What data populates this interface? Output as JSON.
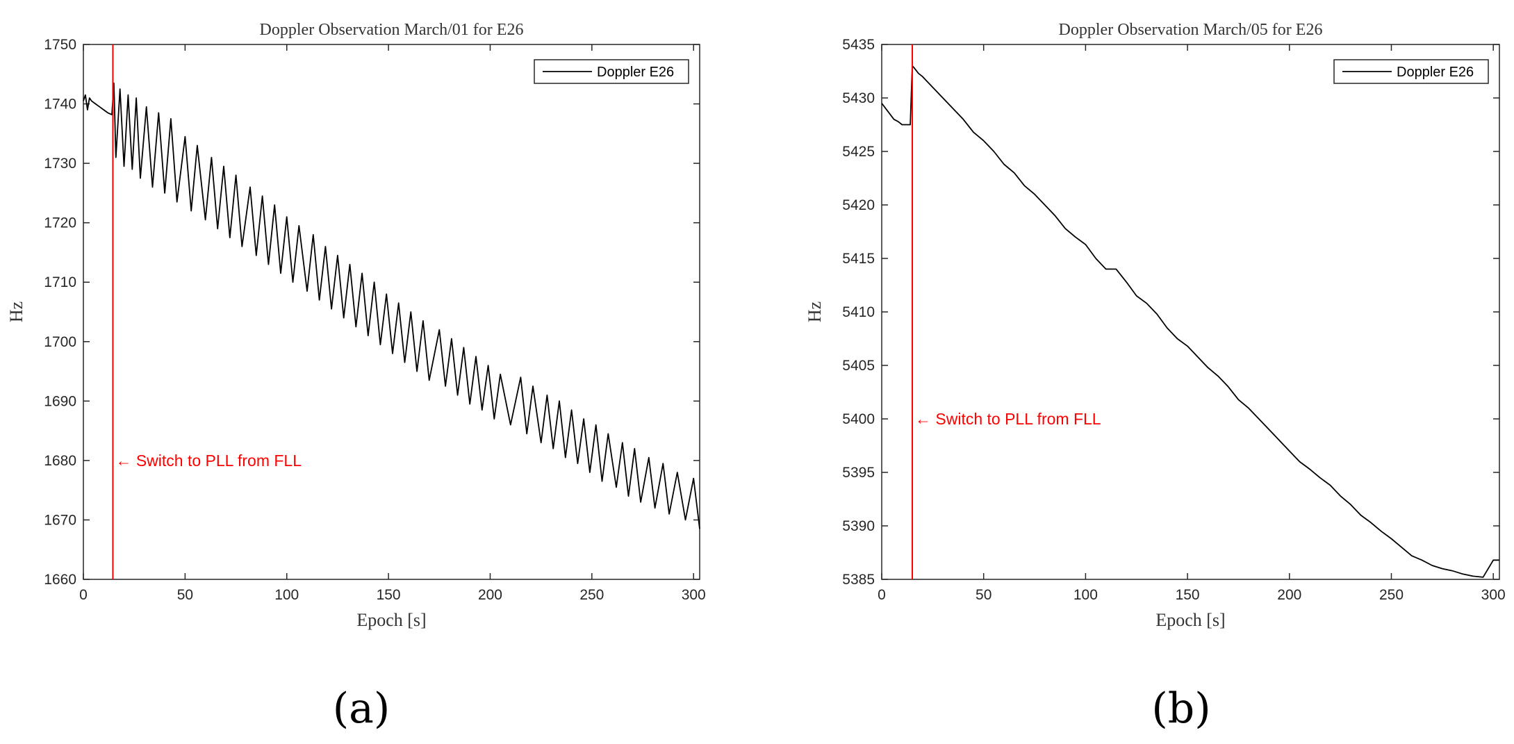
{
  "figure_labels": {
    "a": "(a)",
    "b": "(b)"
  },
  "chart_data": [
    {
      "type": "line",
      "title": "Doppler Observation March/01 for E26",
      "xlabel": "Epoch [s]",
      "ylabel": "Hz",
      "xlim": [
        0,
        303
      ],
      "ylim": [
        1660,
        1750
      ],
      "xticks": [
        0,
        50,
        100,
        150,
        200,
        250,
        300
      ],
      "yticks": [
        1660,
        1670,
        1680,
        1690,
        1700,
        1710,
        1720,
        1730,
        1740,
        1750
      ],
      "grid": false,
      "legend_position": "top-right",
      "series": [
        {
          "name": "Doppler E26",
          "color": "#000000",
          "x": [
            0,
            1,
            2,
            3,
            4,
            6,
            8,
            10,
            12,
            14,
            15,
            16,
            18,
            20,
            22,
            24,
            26,
            28,
            31,
            34,
            37,
            40,
            43,
            46,
            50,
            53,
            56,
            60,
            63,
            66,
            69,
            72,
            75,
            78,
            82,
            85,
            88,
            91,
            94,
            97,
            100,
            103,
            106,
            110,
            113,
            116,
            119,
            122,
            125,
            128,
            131,
            134,
            137,
            140,
            143,
            146,
            149,
            152,
            155,
            158,
            161,
            164,
            167,
            170,
            175,
            178,
            181,
            184,
            187,
            190,
            193,
            196,
            199,
            202,
            205,
            210,
            215,
            218,
            221,
            225,
            228,
            231,
            234,
            237,
            240,
            243,
            246,
            249,
            252,
            255,
            258,
            262,
            265,
            268,
            271,
            274,
            278,
            281,
            285,
            288,
            292,
            296,
            300,
            303
          ],
          "y": [
            1740.5,
            1741.5,
            1739.0,
            1741.0,
            1740.5,
            1740.0,
            1739.5,
            1739.0,
            1738.5,
            1738.2,
            1743.5,
            1731.0,
            1742.5,
            1729.5,
            1741.5,
            1729.0,
            1741.0,
            1727.5,
            1739.5,
            1726.0,
            1738.5,
            1725.0,
            1737.5,
            1723.5,
            1734.5,
            1722.0,
            1733.0,
            1720.5,
            1731.0,
            1719.0,
            1729.5,
            1717.5,
            1728.0,
            1716.0,
            1726.0,
            1714.5,
            1724.5,
            1713.0,
            1723.0,
            1711.5,
            1721.0,
            1710.0,
            1719.5,
            1708.5,
            1718.0,
            1707.0,
            1716.0,
            1705.5,
            1714.5,
            1704.0,
            1713.0,
            1702.5,
            1711.5,
            1701.0,
            1710.0,
            1699.5,
            1708.0,
            1698.0,
            1706.5,
            1696.5,
            1705.0,
            1695.0,
            1703.5,
            1693.5,
            1702.0,
            1692.5,
            1700.5,
            1691.0,
            1699.0,
            1689.5,
            1697.5,
            1688.5,
            1696.0,
            1687.0,
            1694.5,
            1686.0,
            1694.0,
            1684.5,
            1692.5,
            1683.0,
            1691.0,
            1682.0,
            1690.0,
            1680.5,
            1688.5,
            1679.5,
            1687.0,
            1678.0,
            1686.0,
            1676.5,
            1684.5,
            1675.5,
            1683.0,
            1674.0,
            1682.0,
            1673.0,
            1680.5,
            1672.0,
            1679.5,
            1671.0,
            1678.0,
            1670.0,
            1677.0,
            1668.5
          ]
        }
      ],
      "annotation": {
        "text": "← Switch to PLL from FLL",
        "x": 14.5,
        "y": 1680,
        "color": "#ff0000"
      },
      "vline": {
        "x": 14.5,
        "color": "#ff0000"
      }
    },
    {
      "type": "line",
      "title": "Doppler Observation March/05 for E26",
      "xlabel": "Epoch [s]",
      "ylabel": "Hz",
      "xlim": [
        0,
        303
      ],
      "ylim": [
        5385,
        5435
      ],
      "xticks": [
        0,
        50,
        100,
        150,
        200,
        250,
        300
      ],
      "yticks": [
        5385,
        5390,
        5395,
        5400,
        5405,
        5410,
        5415,
        5420,
        5425,
        5430,
        5435
      ],
      "grid": false,
      "legend_position": "top-right",
      "series": [
        {
          "name": "Doppler E26",
          "color": "#000000",
          "x": [
            0,
            2,
            4,
            6,
            8,
            10,
            12,
            14,
            15,
            16,
            18,
            20,
            25,
            30,
            35,
            40,
            45,
            50,
            55,
            60,
            65,
            70,
            75,
            80,
            85,
            90,
            95,
            100,
            105,
            110,
            115,
            120,
            125,
            130,
            135,
            140,
            145,
            150,
            155,
            160,
            165,
            170,
            175,
            180,
            185,
            190,
            195,
            200,
            205,
            210,
            215,
            220,
            225,
            230,
            235,
            240,
            245,
            250,
            255,
            260,
            265,
            270,
            275,
            280,
            285,
            290,
            295,
            300,
            303
          ],
          "y": [
            5429.5,
            5429.0,
            5428.5,
            5428.0,
            5427.8,
            5427.5,
            5427.5,
            5427.5,
            5433.0,
            5432.8,
            5432.3,
            5432.0,
            5431.0,
            5430.0,
            5429.0,
            5428.0,
            5426.8,
            5426.0,
            5425.0,
            5423.8,
            5423.0,
            5421.8,
            5421.0,
            5420.0,
            5419.0,
            5417.8,
            5417.0,
            5416.3,
            5415.0,
            5414.0,
            5414.0,
            5412.8,
            5411.5,
            5410.8,
            5409.8,
            5408.5,
            5407.5,
            5406.8,
            5405.8,
            5404.8,
            5404.0,
            5403.0,
            5401.8,
            5401.0,
            5400.0,
            5399.0,
            5398.0,
            5397.0,
            5396.0,
            5395.3,
            5394.5,
            5393.8,
            5392.8,
            5392.0,
            5391.0,
            5390.3,
            5389.5,
            5388.8,
            5388.0,
            5387.2,
            5386.8,
            5386.3,
            5386.0,
            5385.8,
            5385.5,
            5385.3,
            5385.2,
            5386.8,
            5386.8
          ]
        }
      ],
      "annotation": {
        "text": "← Switch to PLL from FLL",
        "x": 15,
        "y": 5400,
        "color": "#ff0000"
      },
      "vline": {
        "x": 15,
        "color": "#ff0000"
      }
    }
  ]
}
